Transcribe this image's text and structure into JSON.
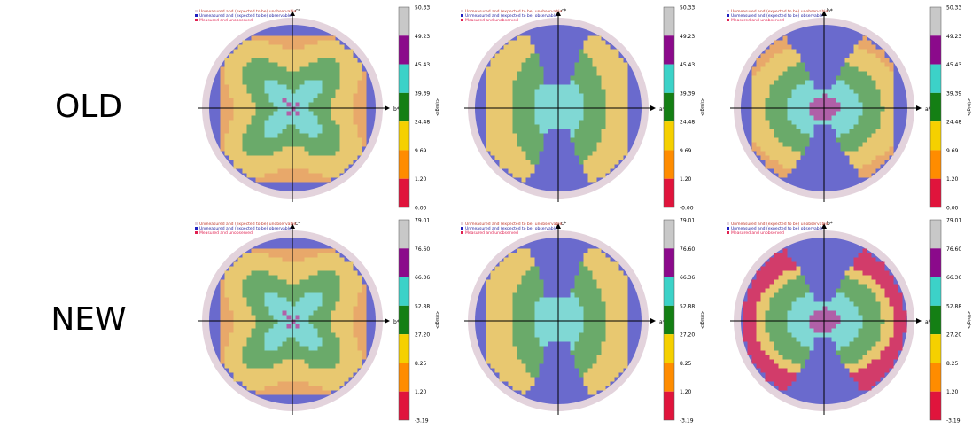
{
  "row_labels": [
    "OLD",
    "NEW"
  ],
  "legend": [
    {
      "label": "Unmeasured and (expected to be) unobservable",
      "color": "#e3d3dc",
      "text_color": "#c0392b"
    },
    {
      "label": "Unmeasured and (expected to be) observable",
      "color": "#2020c0",
      "text_color": "#2020a0"
    },
    {
      "label": "Measured and unobserved",
      "color": "#e02050",
      "text_color": "#e02050"
    }
  ],
  "colorbar_label": "<I/sigI>",
  "colors": {
    "unobservable": "#e3d3dc",
    "observable": "#6a6acd",
    "bin_colors": [
      "#e0143c",
      "#ff8c00",
      "#f5d000",
      "#147f14",
      "#3cd2c8",
      "#8b0a8b",
      "#c8c8c8"
    ],
    "bin_fill_colors": [
      "#d23c6a",
      "#e8a86a",
      "#e8c870",
      "#6aaa6a",
      "#80d8d4",
      "#b060a8",
      "#d8d8d8"
    ]
  },
  "chart_data": [
    {
      "type": "heatmap",
      "row": "OLD",
      "axes": {
        "horizontal": "b*",
        "vertical": "c*"
      },
      "colorbar_ticks": [
        "50.33",
        "49.23",
        "45.43",
        "39.39",
        "24.48",
        "9.69",
        "1.20",
        "0.00"
      ],
      "pattern": "clover"
    },
    {
      "type": "heatmap",
      "row": "OLD",
      "axes": {
        "horizontal": "a*",
        "vertical": "c*"
      },
      "colorbar_ticks": [
        "50.33",
        "49.23",
        "45.43",
        "39.39",
        "24.48",
        "9.69",
        "1.20",
        "-0.00"
      ],
      "pattern": "vertical"
    },
    {
      "type": "heatmap",
      "row": "OLD",
      "axes": {
        "horizontal": "a*",
        "vertical": "b*"
      },
      "colorbar_ticks": [
        "50.33",
        "49.23",
        "45.43",
        "39.39",
        "24.48",
        "9.69",
        "1.20",
        "0.00"
      ],
      "pattern": "butterfly"
    },
    {
      "type": "heatmap",
      "row": "NEW",
      "axes": {
        "horizontal": "b*",
        "vertical": "c*"
      },
      "colorbar_ticks": [
        "79.01",
        "76.60",
        "66.36",
        "52.88",
        "27.20",
        "8.25",
        "1.20",
        "-3.19"
      ],
      "pattern": "clover"
    },
    {
      "type": "heatmap",
      "row": "NEW",
      "axes": {
        "horizontal": "a*",
        "vertical": "c*"
      },
      "colorbar_ticks": [
        "79.01",
        "76.60",
        "66.36",
        "52.88",
        "27.20",
        "8.25",
        "1.20",
        "-3.19"
      ],
      "pattern": "vertical"
    },
    {
      "type": "heatmap",
      "row": "NEW",
      "axes": {
        "horizontal": "a*",
        "vertical": "b*"
      },
      "colorbar_ticks": [
        "79.01",
        "76.60",
        "66.36",
        "52.88",
        "27.20",
        "8.25",
        "1.20",
        "-3.19"
      ],
      "pattern": "butterfly_pink"
    }
  ]
}
